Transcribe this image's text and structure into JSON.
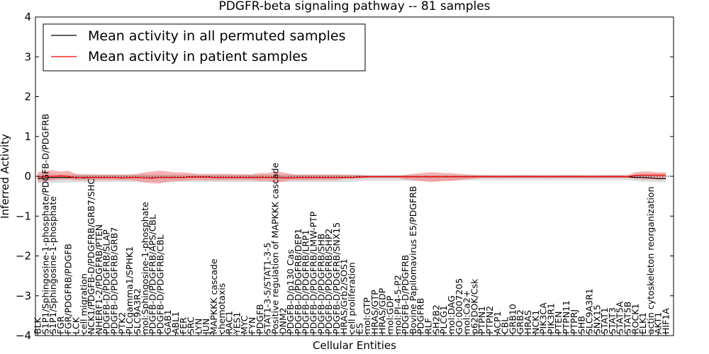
{
  "chart_data": {
    "type": "line",
    "title": "PDGFR-beta signaling pathway -- 81 samples",
    "xlabel": "Cellular Entities",
    "ylabel": "Inferred Activity",
    "ylim": [
      -4,
      4
    ],
    "yticks": [
      -4,
      -3,
      -2,
      -1,
      0,
      1,
      2,
      3,
      4
    ],
    "legend_position": "top-left",
    "colors": {
      "permuted": "#000000",
      "patient": "#ff0000",
      "patient_band": "#f08080",
      "permuted_band": "#c8c8c8"
    },
    "categories": [
      "BLK",
      "S1P1/Sphingosine-1-phosphate/PDGFB-D/PDGFRB",
      "S1P1/Sphingosine-1-phosphate",
      "FGR",
      "FGR/PDGFRB/PDGFB",
      "LCK",
      "cell migration",
      "NCK1/PDGFB-D/PDGFRB/GRB7/SHC",
      "NHERF1-2/PDGFRB/PTEN",
      "PDGFB-D/PDGFRB/SLAP",
      "PDGFB-D/PDGFRB/GRB7",
      "PTK2",
      "PLCgamma1/SPHK1",
      "SLC9A3R2",
      "mol:Sphingosine-1-phosphate",
      "PDGFB-D/PDGFRB/APS/CBL",
      "PDGFB-D/PDGFRB/CBL",
      "GAB1",
      "ABL1",
      "FER",
      "SRC",
      "LYN",
      "JUN",
      "MAPKKK cascade",
      "chemotaxis",
      "RAC1",
      "YES1",
      "MYC",
      "FYN",
      "PDGFB",
      "STAT1-3-5/STAT1-3-5",
      "Positive regulation of MAPKKK cascade",
      "DNM2",
      "PDGFB-D/p130 Cas",
      "PDGFB-D/PDGFRB/DEP1",
      "PDGFB-D/PDGFRB/LRP1",
      "PDGFB-D/PDGFRB/LMW-PTP",
      "PDGFB-D/PDGFRB/SHB",
      "PDGFB-D/PDGFRB/SHP2",
      "PDGFB-D/PDGFRB/SNX15",
      "HRAS/Grb2/SOS1",
      "cell proliferation",
      "ES",
      "mol:GTP",
      "HRAS/GTP",
      "HRAS/GDP",
      "mol:GDP",
      "mol:PI-4-5-P2",
      "PDGFB-D/PDGFRB",
      "Bovine Papilomavirus E5/PDGFRB",
      "PDGFRB",
      "RLF",
      "SH2B2",
      "PLCG1",
      "mol:DAG",
      "GO:0007205",
      "mol:Ca2+",
      "p62DOK/Csk",
      "PTPN1",
      "PTPN2",
      "ACP1",
      "CBL",
      "GRB10",
      "GRB2",
      "HRAS",
      "NCK1",
      "PIK3CA",
      "PIK3R1",
      "PTEN",
      "PTPN11",
      "PTPRJ",
      "SHB",
      "SLC9A3R1",
      "SNX15",
      "STAT1",
      "STAT3",
      "STAT5A",
      "STAT5B",
      "ROCK1",
      "ELK1",
      "actin cytoskeleton reorganization",
      "AKT1",
      "HIF1A"
    ],
    "series": [
      {
        "name": "Mean activity in all permuted samples",
        "values": [
          -0.06,
          -0.04,
          -0.03,
          -0.03,
          -0.03,
          -0.03,
          -0.04,
          -0.03,
          -0.03,
          -0.03,
          -0.03,
          -0.04,
          -0.03,
          -0.03,
          -0.04,
          -0.04,
          -0.03,
          -0.03,
          -0.03,
          -0.03,
          -0.02,
          -0.02,
          -0.02,
          -0.03,
          -0.03,
          -0.03,
          -0.03,
          -0.03,
          -0.03,
          -0.03,
          -0.03,
          -0.03,
          -0.04,
          -0.04,
          -0.03,
          -0.03,
          -0.03,
          -0.03,
          -0.03,
          -0.03,
          -0.03,
          -0.03,
          -0.02,
          -0.01,
          -0.01,
          -0.01,
          -0.01,
          -0.01,
          -0.01,
          -0.01,
          -0.01,
          -0.01,
          -0.01,
          -0.01,
          -0.01,
          -0.01,
          -0.01,
          -0.01,
          -0.01,
          -0.01,
          -0.01,
          -0.01,
          -0.01,
          -0.01,
          -0.01,
          -0.01,
          -0.01,
          -0.01,
          -0.01,
          -0.01,
          -0.01,
          -0.01,
          -0.01,
          -0.01,
          -0.01,
          -0.01,
          -0.01,
          -0.01,
          -0.03,
          -0.03,
          -0.04,
          -0.06,
          -0.06
        ]
      },
      {
        "name": "Mean activity in patient samples",
        "values": [
          -0.02,
          0.0,
          0.0,
          0.01,
          0.0,
          -0.04,
          -0.03,
          -0.03,
          -0.03,
          -0.03,
          -0.03,
          -0.04,
          -0.03,
          -0.03,
          -0.04,
          -0.05,
          -0.03,
          -0.03,
          -0.03,
          -0.03,
          -0.02,
          -0.02,
          -0.02,
          -0.03,
          -0.03,
          -0.03,
          -0.03,
          -0.03,
          -0.03,
          -0.03,
          -0.03,
          -0.03,
          -0.04,
          -0.04,
          -0.03,
          -0.03,
          -0.03,
          -0.03,
          -0.03,
          -0.03,
          -0.03,
          -0.03,
          -0.02,
          -0.01,
          -0.01,
          -0.01,
          -0.01,
          -0.01,
          -0.01,
          -0.01,
          -0.01,
          -0.01,
          -0.01,
          -0.01,
          -0.01,
          -0.01,
          -0.01,
          -0.01,
          -0.01,
          -0.01,
          -0.01,
          -0.01,
          -0.01,
          -0.01,
          -0.01,
          -0.01,
          -0.01,
          -0.01,
          -0.01,
          -0.01,
          -0.01,
          -0.01,
          -0.01,
          -0.01,
          -0.01,
          -0.01,
          -0.01,
          -0.01,
          0.02,
          0.03,
          0.03,
          0.03,
          0.03
        ]
      }
    ],
    "permuted_band": {
      "upper": [
        0.05,
        0.08,
        0.06,
        0.06,
        0.06,
        0.06,
        0.06,
        0.06,
        0.05,
        0.05,
        0.05,
        0.05,
        0.05,
        0.05,
        0.05,
        0.05,
        0.05,
        0.05,
        0.05,
        0.05,
        0.05,
        0.05,
        0.05,
        0.05,
        0.05,
        0.05,
        0.05,
        0.05,
        0.05,
        0.05,
        0.05,
        0.05,
        0.05,
        0.05,
        0.05,
        0.05,
        0.05,
        0.05,
        0.05,
        0.05,
        0.05,
        0.05,
        0.04,
        0.03,
        0.03,
        0.03,
        0.03,
        0.03,
        0.03,
        0.03,
        0.03,
        0.03,
        0.03,
        0.03,
        0.03,
        0.03,
        0.03,
        0.03,
        0.03,
        0.03,
        0.03,
        0.03,
        0.03,
        0.03,
        0.03,
        0.03,
        0.03,
        0.03,
        0.03,
        0.03,
        0.03,
        0.03,
        0.03,
        0.03,
        0.03,
        0.03,
        0.03,
        0.03,
        0.05,
        0.06,
        0.06,
        0.06,
        0.06
      ],
      "lower": [
        -0.18,
        -0.18,
        -0.17,
        -0.16,
        -0.16,
        -0.15,
        -0.15,
        -0.15,
        -0.14,
        -0.14,
        -0.14,
        -0.14,
        -0.14,
        -0.14,
        -0.14,
        -0.14,
        -0.14,
        -0.14,
        -0.14,
        -0.14,
        -0.14,
        -0.14,
        -0.14,
        -0.14,
        -0.14,
        -0.14,
        -0.14,
        -0.14,
        -0.14,
        -0.14,
        -0.14,
        -0.14,
        -0.14,
        -0.14,
        -0.14,
        -0.14,
        -0.14,
        -0.14,
        -0.14,
        -0.14,
        -0.14,
        -0.14,
        -0.13,
        -0.11,
        -0.11,
        -0.11,
        -0.11,
        -0.11,
        -0.11,
        -0.11,
        -0.11,
        -0.11,
        -0.11,
        -0.11,
        -0.1,
        -0.1,
        -0.1,
        -0.1,
        -0.1,
        -0.1,
        -0.1,
        -0.1,
        -0.1,
        -0.1,
        -0.1,
        -0.1,
        -0.1,
        -0.1,
        -0.1,
        -0.1,
        -0.1,
        -0.1,
        -0.1,
        -0.1,
        -0.1,
        -0.1,
        -0.1,
        -0.1,
        -0.12,
        -0.14,
        -0.14,
        -0.15,
        -0.15
      ]
    },
    "patient_band": {
      "upper": [
        0.1,
        0.14,
        0.15,
        0.12,
        0.14,
        0.06,
        0.04,
        0.04,
        0.04,
        0.04,
        0.04,
        0.04,
        0.04,
        0.06,
        0.1,
        0.12,
        0.14,
        0.12,
        0.1,
        0.1,
        0.08,
        0.06,
        0.06,
        0.06,
        0.06,
        0.06,
        0.05,
        0.05,
        0.05,
        0.08,
        0.08,
        0.12,
        0.1,
        0.06,
        0.04,
        0.04,
        0.04,
        0.04,
        0.04,
        0.04,
        0.03,
        0.03,
        0.03,
        0.02,
        0.02,
        0.02,
        0.02,
        0.02,
        0.04,
        0.06,
        0.08,
        0.1,
        0.1,
        0.08,
        0.08,
        0.06,
        0.05,
        0.04,
        0.03,
        0.03,
        0.03,
        0.03,
        0.03,
        0.03,
        0.03,
        0.03,
        0.03,
        0.03,
        0.03,
        0.03,
        0.03,
        0.03,
        0.03,
        0.03,
        0.03,
        0.03,
        0.03,
        0.03,
        0.1,
        0.12,
        0.12,
        0.1,
        0.1
      ],
      "lower": [
        -0.14,
        -0.12,
        -0.1,
        -0.08,
        -0.08,
        -0.1,
        -0.1,
        -0.1,
        -0.1,
        -0.1,
        -0.1,
        -0.1,
        -0.1,
        -0.12,
        -0.16,
        -0.18,
        -0.18,
        -0.14,
        -0.12,
        -0.12,
        -0.1,
        -0.1,
        -0.1,
        -0.1,
        -0.1,
        -0.1,
        -0.1,
        -0.1,
        -0.1,
        -0.12,
        -0.12,
        -0.16,
        -0.14,
        -0.1,
        -0.1,
        -0.1,
        -0.1,
        -0.1,
        -0.1,
        -0.1,
        -0.06,
        -0.06,
        -0.06,
        -0.04,
        -0.04,
        -0.04,
        -0.04,
        -0.04,
        -0.08,
        -0.1,
        -0.12,
        -0.14,
        -0.14,
        -0.12,
        -0.12,
        -0.1,
        -0.08,
        -0.06,
        -0.04,
        -0.04,
        -0.04,
        -0.04,
        -0.04,
        -0.04,
        -0.04,
        -0.04,
        -0.04,
        -0.04,
        -0.04,
        -0.04,
        -0.04,
        -0.04,
        -0.04,
        -0.04,
        -0.04,
        -0.04,
        -0.04,
        -0.04,
        -0.06,
        -0.08,
        -0.08,
        -0.06,
        -0.06
      ]
    }
  }
}
